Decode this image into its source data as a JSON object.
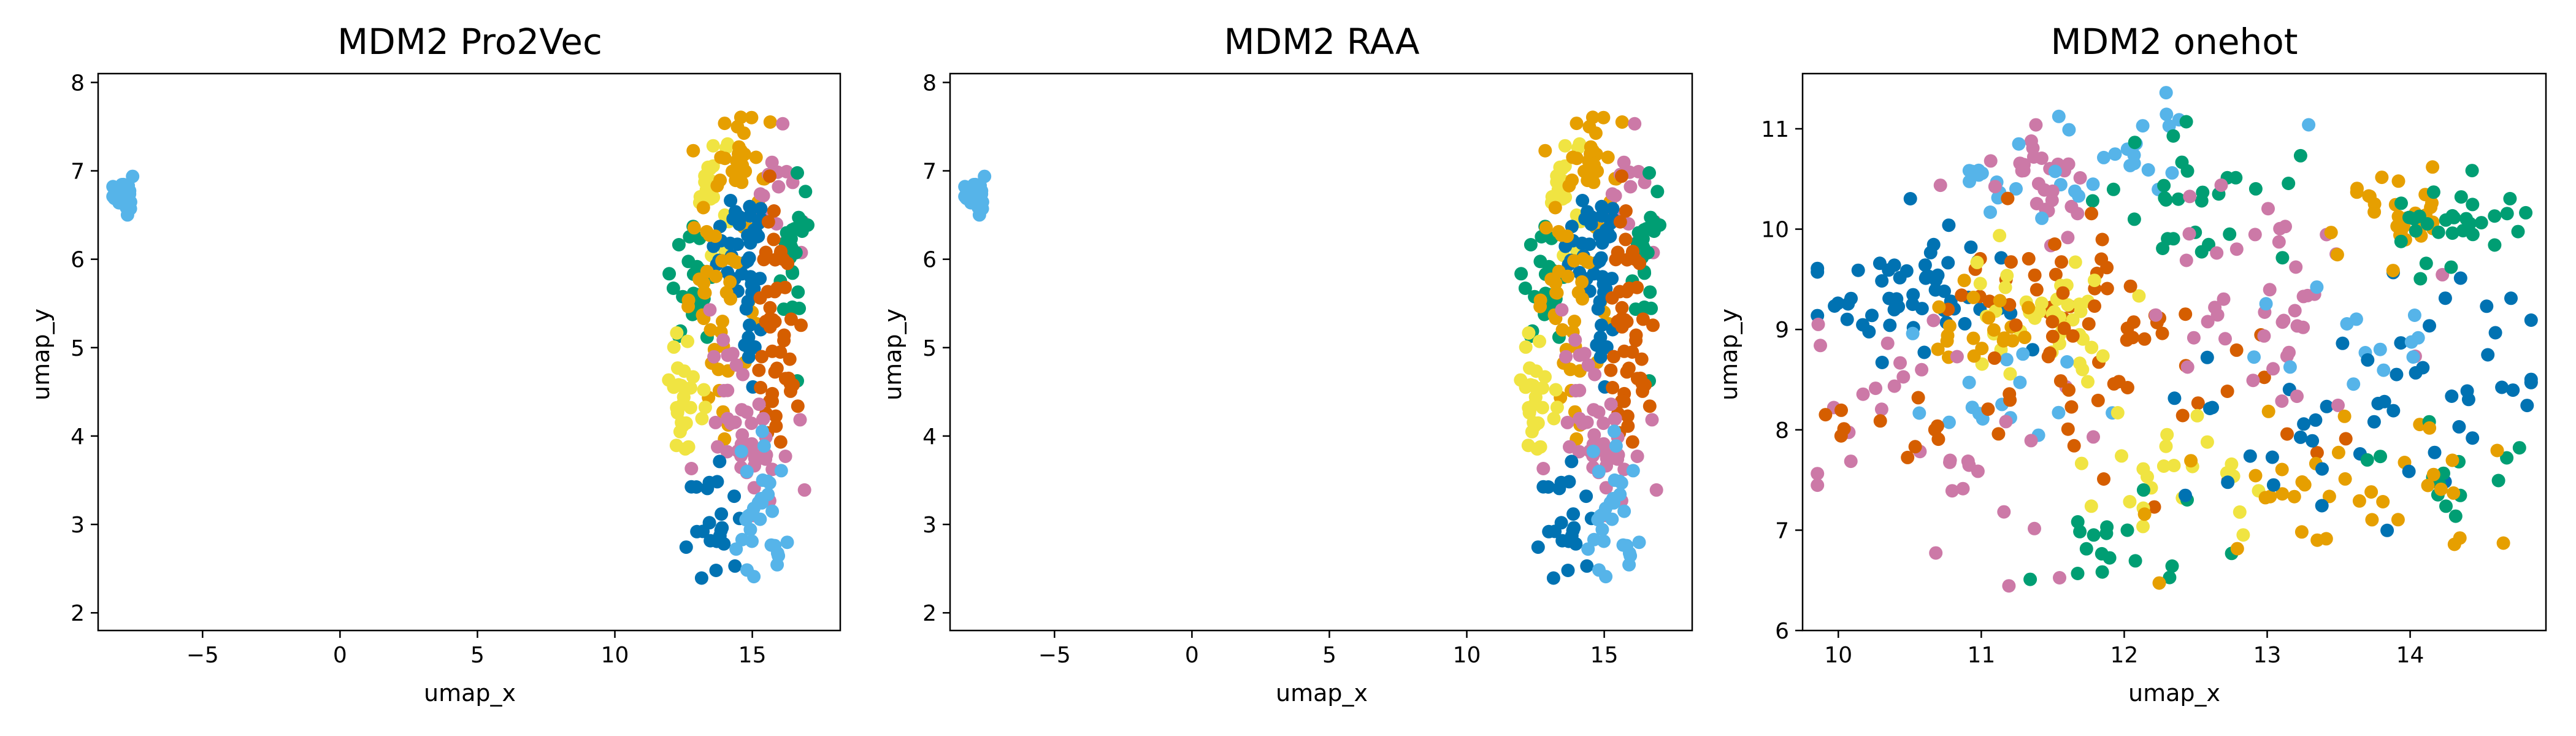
{
  "colors": [
    "#0072B2",
    "#009E73",
    "#D55E00",
    "#CC79A7",
    "#F0E442",
    "#56B4E9",
    "#E69F00"
  ],
  "chart_data": [
    {
      "type": "scatter",
      "title": "MDM2 Pro2Vec",
      "xlabel": "umap_x",
      "ylabel": "umap_y",
      "xlim": [
        -8.8,
        18.2
      ],
      "ylim": [
        1.8,
        8.1
      ],
      "xticks": [
        -5,
        0,
        5,
        10,
        15
      ],
      "yticks": [
        2,
        3,
        4,
        5,
        6,
        7,
        8
      ],
      "grid": false,
      "legend": "none",
      "clusters": [
        {
          "cluster": 5,
          "cx": -7.9,
          "cy": 6.75,
          "sx": 0.18,
          "sy": 0.12,
          "n": 25
        },
        {
          "cluster": 4,
          "cx": 13.5,
          "cy": 6.9,
          "sx": 0.35,
          "sy": 0.3,
          "n": 20
        },
        {
          "cluster": 6,
          "cx": 14.6,
          "cy": 7.1,
          "sx": 0.5,
          "sy": 0.35,
          "n": 30
        },
        {
          "cluster": 3,
          "cx": 15.8,
          "cy": 6.8,
          "sx": 0.4,
          "sy": 0.45,
          "n": 16
        },
        {
          "cluster": 0,
          "cx": 14.3,
          "cy": 6.2,
          "sx": 0.45,
          "sy": 0.3,
          "n": 22
        },
        {
          "cluster": 1,
          "cx": 16.5,
          "cy": 6.0,
          "sx": 0.3,
          "sy": 0.45,
          "n": 24
        },
        {
          "cluster": 1,
          "cx": 12.8,
          "cy": 5.7,
          "sx": 0.4,
          "sy": 0.3,
          "n": 22
        },
        {
          "cluster": 6,
          "cx": 13.9,
          "cy": 5.5,
          "sx": 0.6,
          "sy": 0.6,
          "n": 40
        },
        {
          "cluster": 0,
          "cx": 15.0,
          "cy": 5.7,
          "sx": 0.25,
          "sy": 0.5,
          "n": 28
        },
        {
          "cluster": 2,
          "cx": 15.8,
          "cy": 5.6,
          "sx": 0.3,
          "sy": 0.45,
          "n": 26
        },
        {
          "cluster": 2,
          "cx": 16.0,
          "cy": 4.5,
          "sx": 0.45,
          "sy": 0.35,
          "n": 22
        },
        {
          "cluster": 4,
          "cx": 12.6,
          "cy": 4.5,
          "sx": 0.3,
          "sy": 0.4,
          "n": 28
        },
        {
          "cluster": 3,
          "cx": 14.8,
          "cy": 4.2,
          "sx": 0.7,
          "sy": 0.45,
          "n": 45
        },
        {
          "cluster": 0,
          "cx": 13.6,
          "cy": 3.0,
          "sx": 0.5,
          "sy": 0.35,
          "n": 22
        },
        {
          "cluster": 5,
          "cx": 15.2,
          "cy": 2.9,
          "sx": 0.5,
          "sy": 0.45,
          "n": 30
        }
      ]
    },
    {
      "type": "scatter",
      "title": "MDM2 RAA",
      "xlabel": "umap_x",
      "ylabel": "umap_y",
      "xlim": [
        -8.8,
        18.2
      ],
      "ylim": [
        1.8,
        8.1
      ],
      "xticks": [
        -5,
        0,
        5,
        10,
        15
      ],
      "yticks": [
        2,
        3,
        4,
        5,
        6,
        7,
        8
      ],
      "grid": false,
      "legend": "none",
      "clusters": [
        {
          "cluster": 5,
          "cx": -7.9,
          "cy": 6.75,
          "sx": 0.18,
          "sy": 0.12,
          "n": 25
        },
        {
          "cluster": 4,
          "cx": 13.5,
          "cy": 6.9,
          "sx": 0.35,
          "sy": 0.3,
          "n": 20
        },
        {
          "cluster": 6,
          "cx": 14.6,
          "cy": 7.1,
          "sx": 0.5,
          "sy": 0.35,
          "n": 30
        },
        {
          "cluster": 3,
          "cx": 15.8,
          "cy": 6.8,
          "sx": 0.4,
          "sy": 0.45,
          "n": 16
        },
        {
          "cluster": 0,
          "cx": 14.3,
          "cy": 6.2,
          "sx": 0.45,
          "sy": 0.3,
          "n": 22
        },
        {
          "cluster": 1,
          "cx": 16.5,
          "cy": 6.0,
          "sx": 0.3,
          "sy": 0.45,
          "n": 24
        },
        {
          "cluster": 1,
          "cx": 12.8,
          "cy": 5.7,
          "sx": 0.4,
          "sy": 0.3,
          "n": 22
        },
        {
          "cluster": 6,
          "cx": 13.9,
          "cy": 5.5,
          "sx": 0.6,
          "sy": 0.6,
          "n": 40
        },
        {
          "cluster": 0,
          "cx": 15.0,
          "cy": 5.7,
          "sx": 0.25,
          "sy": 0.5,
          "n": 28
        },
        {
          "cluster": 2,
          "cx": 15.8,
          "cy": 5.6,
          "sx": 0.3,
          "sy": 0.45,
          "n": 26
        },
        {
          "cluster": 2,
          "cx": 16.0,
          "cy": 4.5,
          "sx": 0.45,
          "sy": 0.35,
          "n": 22
        },
        {
          "cluster": 4,
          "cx": 12.6,
          "cy": 4.5,
          "sx": 0.3,
          "sy": 0.4,
          "n": 28
        },
        {
          "cluster": 3,
          "cx": 14.8,
          "cy": 4.2,
          "sx": 0.7,
          "sy": 0.45,
          "n": 45
        },
        {
          "cluster": 0,
          "cx": 13.6,
          "cy": 3.0,
          "sx": 0.5,
          "sy": 0.35,
          "n": 22
        },
        {
          "cluster": 5,
          "cx": 15.2,
          "cy": 2.9,
          "sx": 0.5,
          "sy": 0.45,
          "n": 30
        }
      ]
    },
    {
      "type": "scatter",
      "title": "MDM2 onehot",
      "xlabel": "umap_x",
      "ylabel": "umap_y",
      "xlim": [
        9.75,
        14.95
      ],
      "ylim": [
        6.0,
        11.55
      ],
      "xticks": [
        10,
        11,
        12,
        13,
        14
      ],
      "yticks": [
        6,
        7,
        8,
        9,
        10,
        11
      ],
      "grid": false,
      "legend": "none",
      "clusters": [
        {
          "cluster": 0,
          "cx": 10.55,
          "cy": 9.4,
          "sx": 0.4,
          "sy": 0.4,
          "n": 55
        },
        {
          "cluster": 5,
          "cx": 11.0,
          "cy": 10.5,
          "sx": 0.25,
          "sy": 0.2,
          "n": 12
        },
        {
          "cluster": 3,
          "cx": 11.5,
          "cy": 10.5,
          "sx": 0.3,
          "sy": 0.3,
          "n": 28
        },
        {
          "cluster": 5,
          "cx": 12.1,
          "cy": 10.8,
          "sx": 0.45,
          "sy": 0.3,
          "n": 25
        },
        {
          "cluster": 1,
          "cx": 12.55,
          "cy": 10.3,
          "sx": 0.4,
          "sy": 0.3,
          "n": 28
        },
        {
          "cluster": 3,
          "cx": 12.9,
          "cy": 9.7,
          "sx": 0.5,
          "sy": 0.35,
          "n": 20
        },
        {
          "cluster": 2,
          "cx": 11.3,
          "cy": 9.6,
          "sx": 0.4,
          "sy": 0.35,
          "n": 28
        },
        {
          "cluster": 4,
          "cx": 11.45,
          "cy": 9.2,
          "sx": 0.28,
          "sy": 0.28,
          "n": 40
        },
        {
          "cluster": 6,
          "cx": 10.95,
          "cy": 9.0,
          "sx": 0.25,
          "sy": 0.2,
          "n": 20
        },
        {
          "cluster": 2,
          "cx": 11.95,
          "cy": 9.05,
          "sx": 0.3,
          "sy": 0.2,
          "n": 14
        },
        {
          "cluster": 3,
          "cx": 10.3,
          "cy": 8.5,
          "sx": 0.35,
          "sy": 0.3,
          "n": 14
        },
        {
          "cluster": 5,
          "cx": 11.3,
          "cy": 8.2,
          "sx": 0.4,
          "sy": 0.3,
          "n": 16
        },
        {
          "cluster": 3,
          "cx": 11.0,
          "cy": 7.6,
          "sx": 0.5,
          "sy": 0.4,
          "n": 20
        },
        {
          "cluster": 2,
          "cx": 10.5,
          "cy": 8.05,
          "sx": 0.25,
          "sy": 0.2,
          "n": 10
        },
        {
          "cluster": 2,
          "cx": 12.25,
          "cy": 8.3,
          "sx": 0.7,
          "sy": 0.4,
          "n": 35
        },
        {
          "cluster": 4,
          "cx": 12.3,
          "cy": 7.6,
          "sx": 0.4,
          "sy": 0.5,
          "n": 26
        },
        {
          "cluster": 1,
          "cx": 11.95,
          "cy": 6.9,
          "sx": 0.4,
          "sy": 0.3,
          "n": 18
        },
        {
          "cluster": 6,
          "cx": 13.1,
          "cy": 7.2,
          "sx": 0.5,
          "sy": 0.5,
          "n": 24
        },
        {
          "cluster": 0,
          "cx": 13.5,
          "cy": 7.9,
          "sx": 0.55,
          "sy": 0.5,
          "n": 30
        },
        {
          "cluster": 3,
          "cx": 13.1,
          "cy": 9.0,
          "sx": 0.35,
          "sy": 0.35,
          "n": 22
        },
        {
          "cluster": 5,
          "cx": 13.7,
          "cy": 8.9,
          "sx": 0.35,
          "sy": 0.25,
          "n": 14
        },
        {
          "cluster": 0,
          "cx": 14.4,
          "cy": 8.7,
          "sx": 0.35,
          "sy": 0.45,
          "n": 22
        },
        {
          "cluster": 6,
          "cx": 13.9,
          "cy": 10.1,
          "sx": 0.2,
          "sy": 0.22,
          "n": 30
        },
        {
          "cluster": 1,
          "cx": 14.35,
          "cy": 10.05,
          "sx": 0.22,
          "sy": 0.22,
          "n": 30
        },
        {
          "cluster": 1,
          "cx": 14.25,
          "cy": 7.5,
          "sx": 0.4,
          "sy": 0.3,
          "n": 14
        },
        {
          "cluster": 6,
          "cx": 14.0,
          "cy": 7.2,
          "sx": 0.5,
          "sy": 0.4,
          "n": 14
        }
      ]
    }
  ]
}
